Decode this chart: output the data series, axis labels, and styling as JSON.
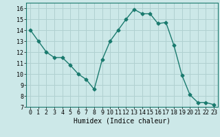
{
  "x": [
    0,
    1,
    2,
    3,
    4,
    5,
    6,
    7,
    8,
    9,
    10,
    11,
    12,
    13,
    14,
    15,
    16,
    17,
    18,
    19,
    20,
    21,
    22,
    23
  ],
  "y": [
    14.0,
    13.0,
    12.0,
    11.5,
    11.5,
    10.8,
    10.0,
    9.5,
    8.6,
    11.3,
    13.0,
    14.0,
    15.0,
    15.9,
    15.5,
    15.5,
    14.6,
    14.7,
    12.6,
    9.9,
    8.1,
    7.4,
    7.4,
    7.2
  ],
  "line_color": "#1a7a6e",
  "marker": "D",
  "marker_size": 2.5,
  "bg_color": "#cce8e8",
  "grid_color": "#b0d0d0",
  "xlabel": "Humidex (Indice chaleur)",
  "ylim": [
    7,
    16.5
  ],
  "xlim": [
    -0.5,
    23.5
  ],
  "yticks": [
    7,
    8,
    9,
    10,
    11,
    12,
    13,
    14,
    15,
    16
  ],
  "xticks": [
    0,
    1,
    2,
    3,
    4,
    5,
    6,
    7,
    8,
    9,
    10,
    11,
    12,
    13,
    14,
    15,
    16,
    17,
    18,
    19,
    20,
    21,
    22,
    23
  ],
  "xlabel_fontsize": 7,
  "tick_fontsize": 6,
  "linewidth": 1.0
}
